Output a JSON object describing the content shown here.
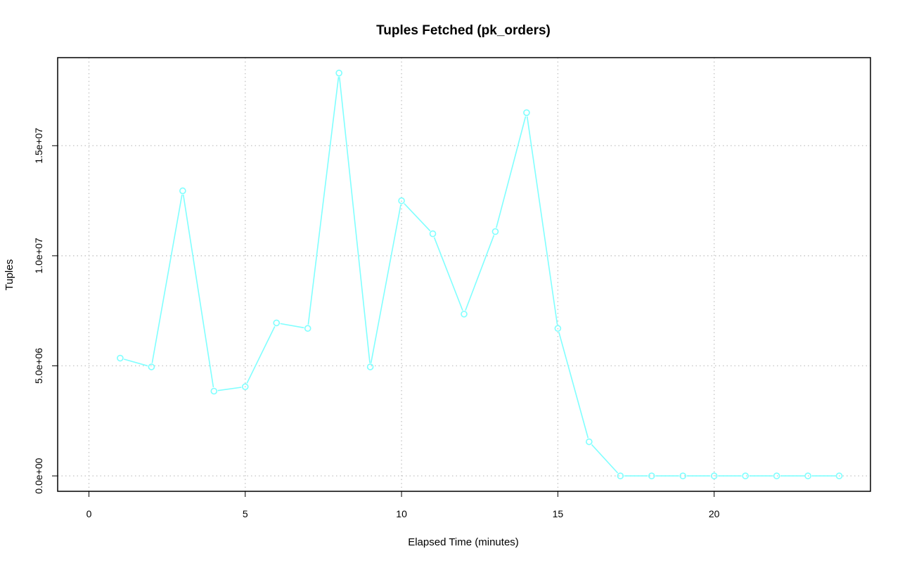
{
  "chart_data": {
    "type": "line",
    "title": "Tuples Fetched (pk_orders)",
    "xlabel": "Elapsed Time (minutes)",
    "ylabel": "Tuples",
    "xlim": [
      -1,
      25
    ],
    "ylim": [
      -700000,
      19000000
    ],
    "x_ticks": [
      0,
      5,
      10,
      15,
      20
    ],
    "x_tick_labels": [
      "0",
      "5",
      "10",
      "15",
      "20"
    ],
    "y_ticks": [
      0,
      5000000,
      10000000,
      15000000
    ],
    "y_tick_labels": [
      "0.0e+00",
      "5.0e+06",
      "1.0e+07",
      "1.5e+07"
    ],
    "grid": true,
    "series": [
      {
        "color": "#80ffff",
        "marker": "circle-open",
        "x": [
          1,
          2,
          3,
          4,
          5,
          6,
          7,
          8,
          9,
          10,
          11,
          12,
          13,
          14,
          15,
          16,
          17,
          18,
          19,
          20,
          21,
          22,
          23,
          24
        ],
        "values": [
          5350000,
          4950000,
          12950000,
          3850000,
          4050000,
          6950000,
          6700000,
          18300000,
          4950000,
          12500000,
          11000000,
          7350000,
          11100000,
          16500000,
          6700000,
          1550000,
          0,
          0,
          0,
          0,
          0,
          0,
          0,
          0
        ]
      }
    ]
  }
}
